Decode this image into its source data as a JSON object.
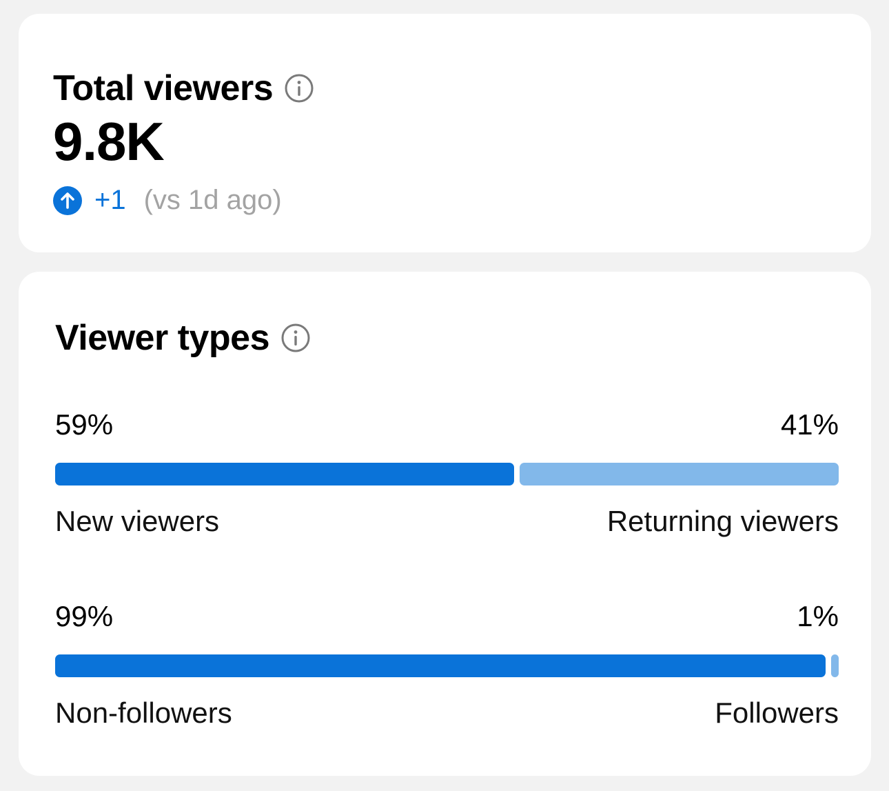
{
  "total_viewers": {
    "title": "Total viewers",
    "info_icon": "info-icon",
    "value": "9.8K",
    "delta": {
      "icon": "arrow-up-circle-icon",
      "value": "+1",
      "note": "(vs 1d ago)"
    }
  },
  "viewer_types": {
    "title": "Viewer types",
    "info_icon": "info-icon",
    "splits": [
      {
        "left_pct": "59%",
        "right_pct": "41%",
        "left_label": "New viewers",
        "right_label": "Returning viewers",
        "left_fraction": 0.59,
        "right_fraction": 0.41
      },
      {
        "left_pct": "99%",
        "right_pct": "1%",
        "left_label": "Non-followers",
        "right_label": "Followers",
        "left_fraction": 0.99,
        "right_fraction": 0.01
      }
    ]
  },
  "colors": {
    "primary": "#0a73d9",
    "secondary": "#82b8ea",
    "muted_text": "#a3a3a3",
    "background": "#f2f2f2",
    "card": "#ffffff"
  }
}
